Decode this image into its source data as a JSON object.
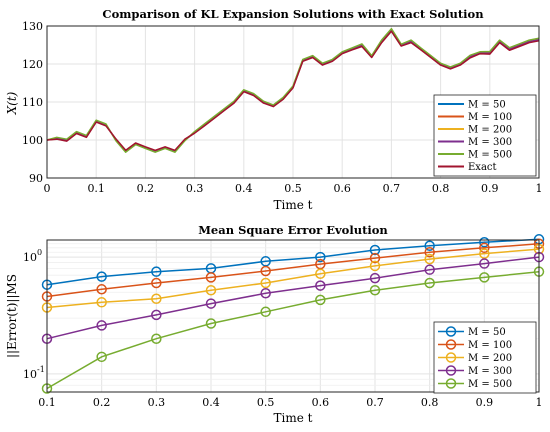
{
  "chart_data": [
    {
      "type": "line",
      "title": "Comparison of KL Expansion Solutions with Exact Solution",
      "xlabel": "Time t",
      "ylabel": "X(t)",
      "xlim": [
        0,
        1
      ],
      "ylim": [
        90,
        130
      ],
      "xticks": [
        0,
        0.1,
        0.2,
        0.3,
        0.4,
        0.5,
        0.6,
        0.7,
        0.8,
        0.9,
        1
      ],
      "xtick_labels": [
        "0",
        "0.1",
        "0.2",
        "0.3",
        "0.4",
        "0.5",
        "0.6",
        "0.7",
        "0.8",
        "0.9",
        "1"
      ],
      "yticks": [
        90,
        100,
        110,
        120,
        130
      ],
      "ytick_labels": [
        "90",
        "100",
        "110",
        "120",
        "130"
      ],
      "grid": true,
      "legend": "bottom-right",
      "x": [
        0,
        0.02,
        0.04,
        0.06,
        0.08,
        0.1,
        0.12,
        0.14,
        0.16,
        0.18,
        0.2,
        0.22,
        0.24,
        0.26,
        0.28,
        0.3,
        0.32,
        0.34,
        0.36,
        0.38,
        0.4,
        0.42,
        0.44,
        0.46,
        0.48,
        0.5,
        0.52,
        0.54,
        0.56,
        0.58,
        0.6,
        0.62,
        0.64,
        0.66,
        0.68,
        0.7,
        0.72,
        0.74,
        0.76,
        0.78,
        0.8,
        0.82,
        0.84,
        0.86,
        0.88,
        0.9,
        0.92,
        0.94,
        0.96,
        0.98,
        1
      ],
      "series": [
        {
          "name": "M = 50",
          "color": "#0072BD",
          "values": [
            100,
            100.5,
            100,
            102,
            101,
            105,
            104,
            100,
            97,
            99,
            98,
            97,
            98,
            97,
            100,
            102,
            104,
            106,
            108,
            110,
            113,
            112,
            110,
            109,
            111,
            114,
            121,
            122,
            120,
            121,
            123,
            124,
            125,
            122,
            126,
            129,
            125,
            126,
            124,
            122,
            120,
            119,
            120,
            122,
            123,
            123,
            126,
            124,
            125,
            126,
            126.5
          ]
        },
        {
          "name": "M = 100",
          "color": "#D95319",
          "values": [
            100,
            100.3,
            99.8,
            101.8,
            100.8,
            104.8,
            103.8,
            100.2,
            97.2,
            99.1,
            98.1,
            97.2,
            98.1,
            97.2,
            100.1,
            101.9,
            103.8,
            105.8,
            107.8,
            109.8,
            112.8,
            111.8,
            109.8,
            108.9,
            110.8,
            113.8,
            120.8,
            121.8,
            119.8,
            120.8,
            122.8,
            123.8,
            124.7,
            121.8,
            125.7,
            128.7,
            124.8,
            125.7,
            123.8,
            121.8,
            119.8,
            118.8,
            119.8,
            121.7,
            122.8,
            122.7,
            125.7,
            123.7,
            124.7,
            125.7,
            126.2
          ]
        },
        {
          "name": "M = 200",
          "color": "#EDB120",
          "values": [
            100,
            100.6,
            100.1,
            102.1,
            101.1,
            105.1,
            104.1,
            99.9,
            96.9,
            98.9,
            97.9,
            96.9,
            97.9,
            96.9,
            99.9,
            102.1,
            104.1,
            106.1,
            108.1,
            110.1,
            113.1,
            112.1,
            110.1,
            109.1,
            111.1,
            114.1,
            121.1,
            122.1,
            120.1,
            121.1,
            123.1,
            124.1,
            125.2,
            122.1,
            126.2,
            129.2,
            125.1,
            126.2,
            124.1,
            122.1,
            120.1,
            119.1,
            120.1,
            122.2,
            123.1,
            123.2,
            126.2,
            124.2,
            125.2,
            126.2,
            126.7
          ]
        },
        {
          "name": "M = 300",
          "color": "#7E2F8E",
          "values": [
            100,
            100.4,
            99.9,
            101.9,
            100.9,
            104.9,
            103.9,
            100.1,
            97.1,
            99,
            98,
            97.1,
            98,
            97.1,
            100,
            101.9,
            103.9,
            105.9,
            107.9,
            109.9,
            112.9,
            111.9,
            109.9,
            108.9,
            110.9,
            113.9,
            120.9,
            121.9,
            119.9,
            120.9,
            122.9,
            123.9,
            124.9,
            121.9,
            125.9,
            128.9,
            124.9,
            125.9,
            123.9,
            121.9,
            119.9,
            118.9,
            119.9,
            121.9,
            122.9,
            122.9,
            125.9,
            123.9,
            124.9,
            125.9,
            126.4
          ]
        },
        {
          "name": "M = 500",
          "color": "#77AC30",
          "values": [
            100,
            100.7,
            100.2,
            102.2,
            101.2,
            105.2,
            104.2,
            99.8,
            96.8,
            98.8,
            97.8,
            96.8,
            97.8,
            96.8,
            99.8,
            102.2,
            104.2,
            106.2,
            108.2,
            110.2,
            113.2,
            112.2,
            110.2,
            109.2,
            111.2,
            114.2,
            121.2,
            122.2,
            120.2,
            121.2,
            123.2,
            124.2,
            125.3,
            122.2,
            126.3,
            129.3,
            125.2,
            126.3,
            124.2,
            122.2,
            120.2,
            119.2,
            120.2,
            122.3,
            123.2,
            123.3,
            126.3,
            124.3,
            125.3,
            126.3,
            126.8
          ]
        },
        {
          "name": "Exact",
          "color": "#A2142F",
          "values": [
            100,
            100.2,
            99.7,
            101.7,
            100.7,
            104.7,
            103.7,
            100.3,
            97.3,
            99.2,
            98.2,
            97.3,
            98.2,
            97.3,
            100.2,
            101.8,
            103.7,
            105.7,
            107.7,
            109.7,
            112.7,
            111.7,
            109.7,
            108.8,
            110.7,
            113.7,
            120.7,
            121.7,
            119.7,
            120.7,
            122.7,
            123.7,
            124.6,
            121.7,
            125.6,
            128.6,
            124.7,
            125.6,
            123.7,
            121.7,
            119.7,
            118.7,
            119.7,
            121.6,
            122.7,
            122.6,
            125.6,
            123.6,
            124.6,
            125.6,
            126.1
          ]
        }
      ]
    },
    {
      "type": "line",
      "title": "Mean Square Error Evolution",
      "xlabel": "Time t",
      "ylabel": "||Error(t)||MS",
      "yscale": "log",
      "xlim": [
        0.1,
        1
      ],
      "ylim": [
        0.07,
        1.4
      ],
      "xticks": [
        0.1,
        0.2,
        0.3,
        0.4,
        0.5,
        0.6,
        0.7,
        0.8,
        0.9,
        1
      ],
      "xtick_labels": [
        "0.1",
        "0.2",
        "0.3",
        "0.4",
        "0.5",
        "0.6",
        "0.7",
        "0.8",
        "0.9",
        "1"
      ],
      "ytick_labels": [
        "10",
        "10"
      ],
      "ytick_exponents": [
        "-1",
        "0"
      ],
      "grid": true,
      "legend": "bottom-right",
      "x": [
        0.1,
        0.2,
        0.3,
        0.4,
        0.5,
        0.6,
        0.7,
        0.8,
        0.9,
        1
      ],
      "series": [
        {
          "name": "M = 50",
          "color": "#0072BD",
          "values": [
            0.58,
            0.68,
            0.75,
            0.8,
            0.92,
            1.0,
            1.15,
            1.25,
            1.34,
            1.42
          ]
        },
        {
          "name": "M = 100",
          "color": "#D95319",
          "values": [
            0.46,
            0.53,
            0.6,
            0.67,
            0.76,
            0.87,
            0.98,
            1.1,
            1.2,
            1.3
          ]
        },
        {
          "name": "M = 200",
          "color": "#EDB120",
          "values": [
            0.37,
            0.41,
            0.44,
            0.52,
            0.6,
            0.72,
            0.84,
            0.96,
            1.07,
            1.17
          ]
        },
        {
          "name": "M = 300",
          "color": "#7E2F8E",
          "values": [
            0.2,
            0.26,
            0.32,
            0.4,
            0.49,
            0.57,
            0.66,
            0.78,
            0.88,
            1.0
          ]
        },
        {
          "name": "M = 500",
          "color": "#77AC30",
          "values": [
            0.075,
            0.14,
            0.2,
            0.27,
            0.34,
            0.43,
            0.52,
            0.6,
            0.67,
            0.75
          ]
        }
      ]
    }
  ]
}
